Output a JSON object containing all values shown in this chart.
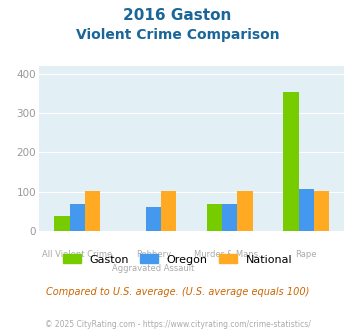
{
  "title_line1": "2016 Gaston",
  "title_line2": "Violent Crime Comparison",
  "groups": [
    "Gaston",
    "Oregon",
    "National"
  ],
  "values": {
    "Gaston": [
      38,
      0,
      68,
      355
    ],
    "Oregon": [
      68,
      60,
      68,
      108
    ],
    "National": [
      103,
      103,
      103,
      101
    ]
  },
  "colors": {
    "Gaston": "#77cc00",
    "Oregon": "#4499ee",
    "National": "#ffaa22"
  },
  "ylim": [
    0,
    420
  ],
  "yticks": [
    0,
    100,
    200,
    300,
    400
  ],
  "bg_color": "#e2eff4",
  "title_color": "#1a6699",
  "tick_label_color": "#aaaaaa",
  "footer_text": "Compared to U.S. average. (U.S. average equals 100)",
  "footer_color": "#cc6600",
  "copyright_text": "© 2025 CityRating.com - https://www.cityrating.com/crime-statistics/",
  "copyright_color": "#aaaaaa",
  "cat_top": [
    "",
    "Robbery",
    "Murder & Mans...",
    ""
  ],
  "cat_bot": [
    "All Violent Crime",
    "Aggravated Assault",
    "",
    "Rape"
  ]
}
